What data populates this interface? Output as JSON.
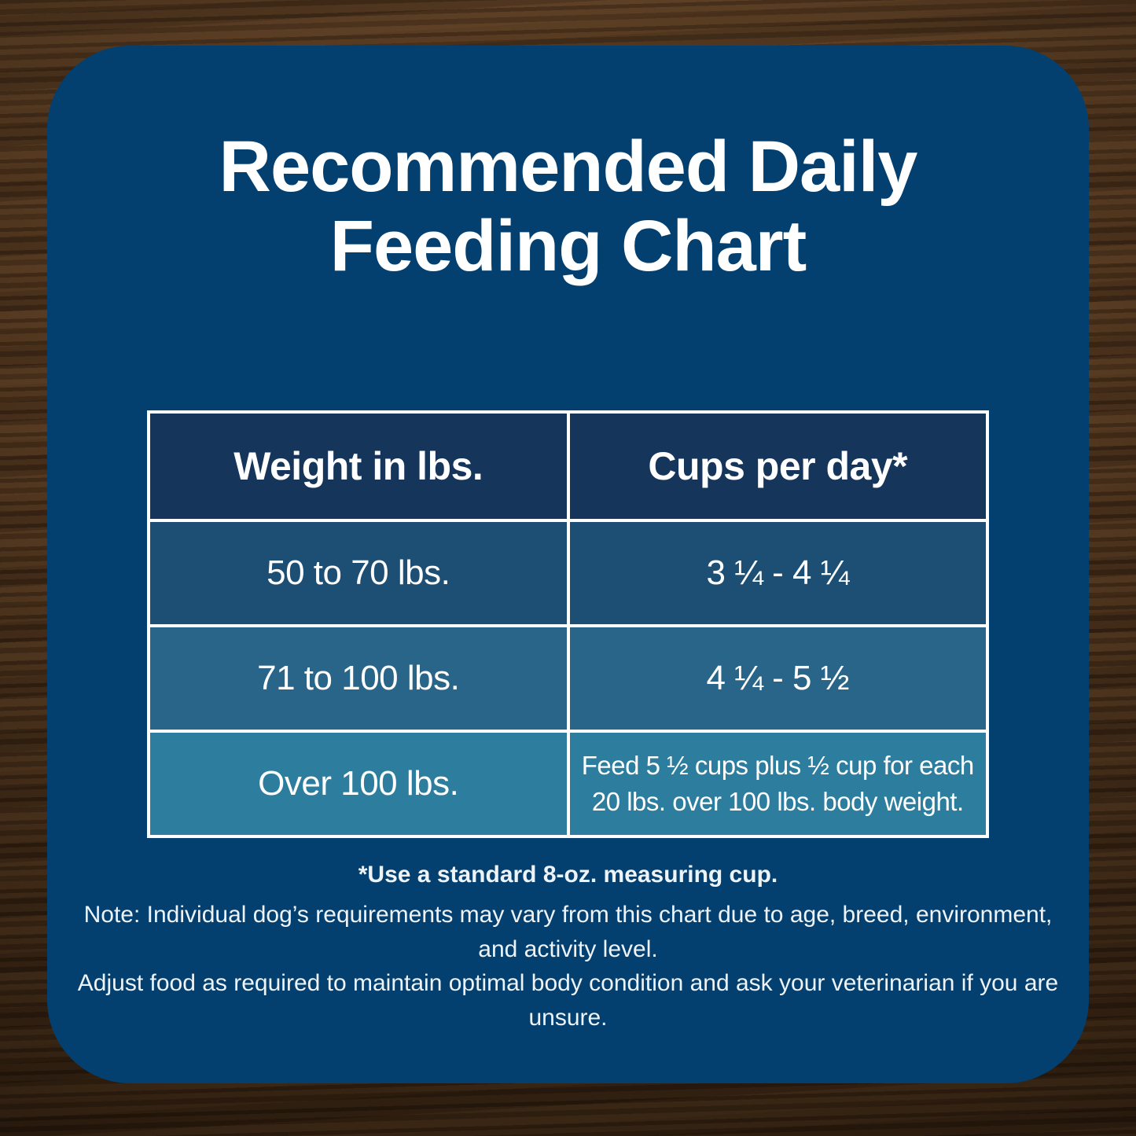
{
  "title": {
    "line1": "Recommended Daily",
    "line2": "Feeding Chart"
  },
  "table": {
    "headers": [
      "Weight in lbs.",
      "Cups per day*"
    ],
    "rows": [
      {
        "weight": "50 to 70 lbs.",
        "cups": "3 ¼ - 4 ¼"
      },
      {
        "weight": "71 to 100 lbs.",
        "cups": "4 ¼ - 5 ½"
      },
      {
        "weight": "Over 100 lbs.",
        "cups": "Feed 5 ½ cups plus ½ cup for each 20 lbs. over 100 lbs. body weight."
      }
    ]
  },
  "footnotes": {
    "cup_note": "*Use a standard 8-oz. measuring cup.",
    "note_line1": "Note: Individual dog’s requirements may vary from this chart due to age, breed, environment, and activity level.",
    "note_line2": "Adjust food as required to maintain optimal body condition and ask your veterinarian if you are unsure."
  },
  "colors": {
    "panel_blue": "#04406f",
    "header_navy": "#15355b",
    "row1_blue": "#1d4f75",
    "row2_teal": "#286588",
    "row3_teal": "#2d7e9e",
    "border_white": "#ffffff",
    "text_white": "#ffffff",
    "wood_brown": "#4a311c"
  },
  "chart_data": {
    "type": "table",
    "title": "Recommended Daily Feeding Chart",
    "columns": [
      "Weight in lbs.",
      "Cups per day*"
    ],
    "rows": [
      [
        "50 to 70 lbs.",
        "3 ¼ - 4 ¼"
      ],
      [
        "71 to 100 lbs.",
        "4 ¼ - 5 ½"
      ],
      [
        "Over 100 lbs.",
        "Feed 5 ½ cups plus ½ cup for each 20 lbs. over 100 lbs. body weight."
      ]
    ],
    "notes": [
      "*Use a standard 8-oz. measuring cup.",
      "Note: Individual dog’s requirements may vary from this chart due to age, breed, environment, and activity level.",
      "Adjust food as required to maintain optimal body condition and ask your veterinarian if you are unsure."
    ]
  }
}
